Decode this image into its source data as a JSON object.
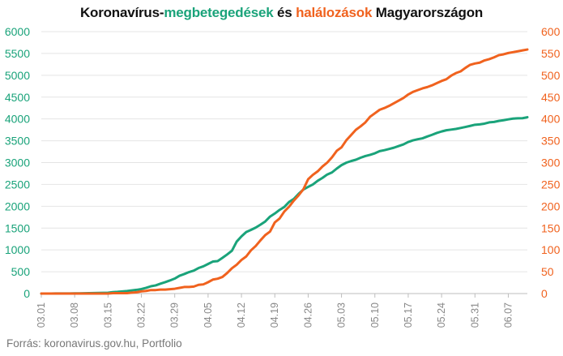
{
  "title": {
    "part1": "Koronavírus-",
    "part2": "megbetegedések",
    "part3": " és ",
    "part4": "halálozások",
    "part5": " Magyarországon"
  },
  "source": "Forrás: koronavirus.gov.hu, Portfolio",
  "colors": {
    "cases": "#1aa37a",
    "deaths": "#f0621e",
    "grid": "#e4e4e4",
    "axis_text_left": "#1aa37a",
    "axis_text_right": "#f0621e",
    "x_text": "#888888"
  },
  "chart_data": {
    "type": "line",
    "title": "Koronavírus-megbetegedések és halálozások Magyarországon",
    "xlabel": "",
    "ylabel_left": "",
    "ylabel_right": "",
    "ylim_left": [
      0,
      6000
    ],
    "ylim_right": [
      0,
      600
    ],
    "yticks_left": [
      "0",
      "500",
      "1000",
      "1500",
      "2000",
      "2500",
      "3000",
      "3500",
      "4000",
      "4500",
      "5000",
      "5500",
      "6000"
    ],
    "yticks_right": [
      "0",
      "50",
      "100",
      "150",
      "200",
      "250",
      "300",
      "350",
      "400",
      "450",
      "500",
      "550",
      "600"
    ],
    "xticks": [
      {
        "index": 0,
        "label": "03.01"
      },
      {
        "index": 7,
        "label": "03.08"
      },
      {
        "index": 14,
        "label": "03.15"
      },
      {
        "index": 21,
        "label": "03.22"
      },
      {
        "index": 28,
        "label": "03.29"
      },
      {
        "index": 35,
        "label": "04.05"
      },
      {
        "index": 42,
        "label": "04.12"
      },
      {
        "index": 49,
        "label": "04.19"
      },
      {
        "index": 56,
        "label": "04.26"
      },
      {
        "index": 63,
        "label": "05.03"
      },
      {
        "index": 70,
        "label": "05.10"
      },
      {
        "index": 77,
        "label": "05.17"
      },
      {
        "index": 84,
        "label": "05.24"
      },
      {
        "index": 91,
        "label": "05.31"
      },
      {
        "index": 98,
        "label": "06.07"
      }
    ],
    "n_points": 103,
    "series": [
      {
        "name": "megbetegedések",
        "axis": "left",
        "color": "#1aa37a",
        "values": [
          0,
          0,
          0,
          2,
          2,
          2,
          3,
          4,
          5,
          7,
          9,
          12,
          13,
          16,
          19,
          32,
          39,
          50,
          58,
          73,
          85,
          103,
          131,
          167,
          187,
          226,
          261,
          300,
          343,
          408,
          447,
          492,
          525,
          585,
          623,
          678,
          733,
          744,
          817,
          895,
          980,
          1190,
          1310,
          1410,
          1458,
          1512,
          1579,
          1652,
          1763,
          1834,
          1916,
          1984,
          2098,
          2168,
          2284,
          2383,
          2443,
          2500,
          2583,
          2649,
          2727,
          2775,
          2863,
          2942,
          2998,
          3035,
          3065,
          3111,
          3150,
          3178,
          3213,
          3263,
          3284,
          3313,
          3341,
          3380,
          3417,
          3473,
          3509,
          3535,
          3556,
          3598,
          3636,
          3679,
          3713,
          3741,
          3756,
          3771,
          3793,
          3816,
          3841,
          3867,
          3876,
          3892,
          3921,
          3931,
          3954,
          3970,
          3990,
          4007,
          4014,
          4017,
          4039
        ]
      },
      {
        "name": "halálozások",
        "axis": "right",
        "color": "#f0621e",
        "values": [
          0,
          0,
          0,
          0,
          0,
          0,
          0,
          0,
          0,
          0,
          0,
          0,
          0,
          0,
          0,
          1,
          1,
          1,
          1,
          2,
          3,
          5,
          6,
          8,
          8,
          9,
          9,
          10,
          11,
          13,
          15,
          15,
          16,
          20,
          21,
          26,
          32,
          34,
          38,
          47,
          58,
          66,
          77,
          85,
          99,
          109,
          122,
          134,
          142,
          163,
          172,
          188,
          199,
          213,
          225,
          239,
          262,
          272,
          280,
          291,
          300,
          312,
          327,
          335,
          351,
          363,
          375,
          383,
          392,
          405,
          413,
          421,
          425,
          430,
          436,
          442,
          448,
          456,
          462,
          466,
          470,
          473,
          477,
          482,
          487,
          491,
          499,
          505,
          509,
          517,
          524,
          527,
          529,
          534,
          537,
          541,
          546,
          548,
          551,
          553,
          555,
          557,
          559
        ]
      }
    ]
  }
}
